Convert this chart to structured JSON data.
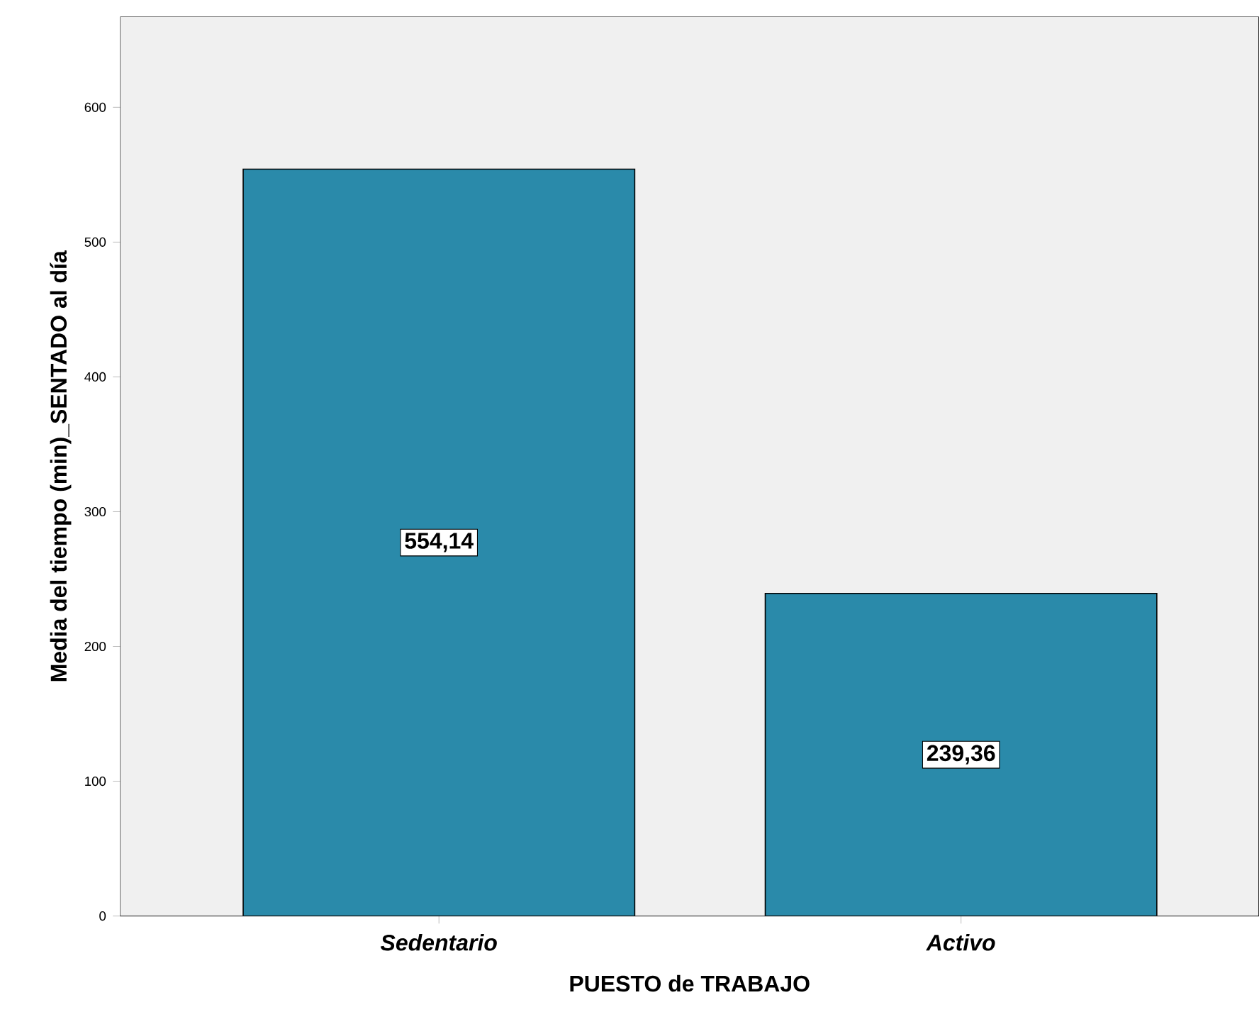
{
  "chart_data": {
    "type": "bar",
    "xlabel": "PUESTO de TRABAJO",
    "ylabel": "Media del tiempo (min)_SENTADO al día",
    "categories": [
      "*Sedentario*",
      "*Activo*"
    ],
    "values": [
      554.14,
      239.36
    ],
    "value_labels": [
      "554,14",
      "239,36"
    ],
    "color": "#2a8aaa",
    "ylim": [
      0,
      667
    ],
    "yticks": [
      0,
      100,
      200,
      300,
      400,
      500,
      600
    ]
  }
}
